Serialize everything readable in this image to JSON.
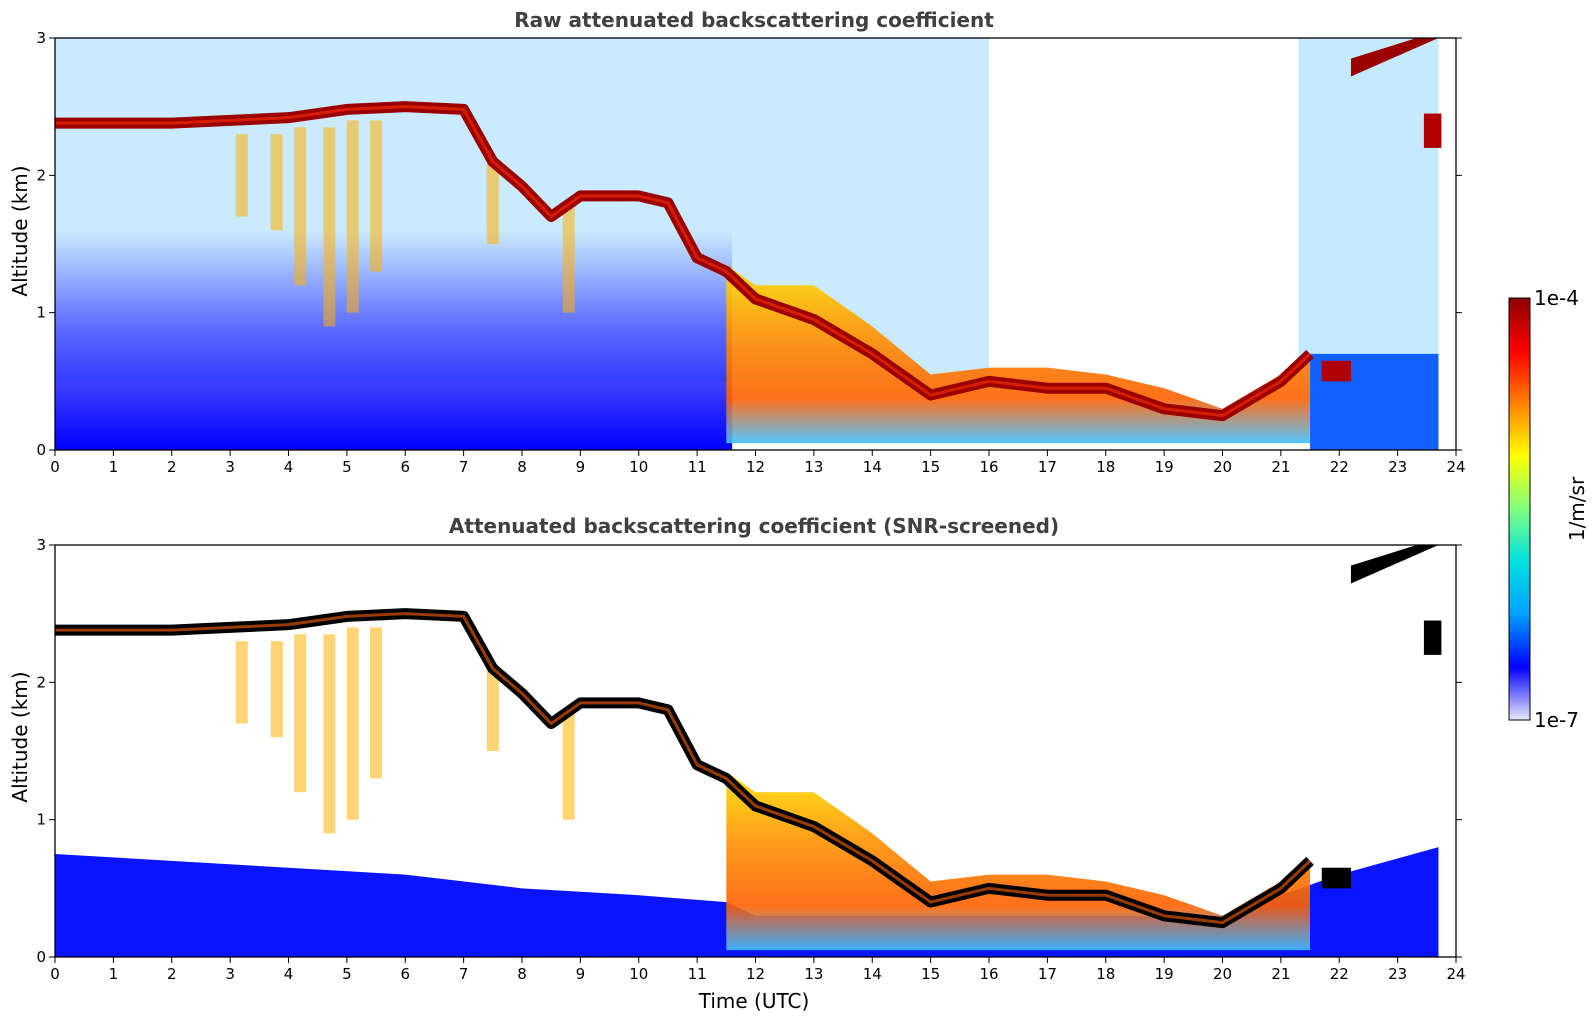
{
  "chart_data": [
    {
      "type": "heatmap",
      "title": "Raw attenuated backscattering coefficient",
      "xlabel": "",
      "ylabel": "Altitude (km)",
      "xlim": [
        0,
        24
      ],
      "ylim": [
        0,
        3
      ],
      "xticks": [
        "0",
        "1",
        "2",
        "3",
        "4",
        "5",
        "6",
        "7",
        "8",
        "9",
        "10",
        "11",
        "12",
        "13",
        "14",
        "15",
        "16",
        "17",
        "18",
        "19",
        "20",
        "21",
        "22",
        "23",
        "24"
      ],
      "yticks": [
        "0",
        "1",
        "2",
        "3"
      ],
      "cloud_layer": {
        "time": [
          0,
          1,
          2,
          3,
          4,
          5,
          6,
          7,
          7.5,
          8,
          8.5,
          9,
          10,
          10.5,
          11,
          11.5,
          12,
          13,
          14,
          15,
          16,
          17,
          18,
          19,
          20,
          21,
          21.5
        ],
        "altitude": [
          2.38,
          2.38,
          2.38,
          2.4,
          2.42,
          2.48,
          2.5,
          2.48,
          2.1,
          1.92,
          1.7,
          1.85,
          1.85,
          1.8,
          1.4,
          1.3,
          1.1,
          0.95,
          0.7,
          0.4,
          0.5,
          0.45,
          0.45,
          0.3,
          0.25,
          0.5,
          0.7
        ]
      },
      "upper_cloud": {
        "time": [
          22.2,
          23.7
        ],
        "altitude": [
          2.85,
          3.0
        ]
      }
    },
    {
      "type": "heatmap",
      "title": "Attenuated backscattering coefficient (SNR-screened)",
      "xlabel": "Time (UTC)",
      "ylabel": "Altitude (km)",
      "xlim": [
        0,
        24
      ],
      "ylim": [
        0,
        3
      ],
      "xticks": [
        "0",
        "1",
        "2",
        "3",
        "4",
        "5",
        "6",
        "7",
        "8",
        "9",
        "10",
        "11",
        "12",
        "13",
        "14",
        "15",
        "16",
        "17",
        "18",
        "19",
        "20",
        "21",
        "22",
        "23",
        "24"
      ],
      "yticks": [
        "0",
        "1",
        "2",
        "3"
      ],
      "boundary_layer_top": {
        "time": [
          0,
          2,
          4,
          6,
          8,
          10,
          11.5,
          12,
          16,
          20,
          22,
          23.7
        ],
        "altitude": [
          0.75,
          0.7,
          0.65,
          0.6,
          0.5,
          0.45,
          0.4,
          0.3,
          0.3,
          0.3,
          0.6,
          0.8
        ]
      }
    }
  ],
  "colorbar": {
    "label": "1/m/sr",
    "max_label": "1e-4",
    "min_label": "1e-7",
    "range": [
      1e-07,
      0.0001
    ],
    "colors": [
      "#e8e8f8",
      "#0000ff",
      "#00a0ff",
      "#00e0e0",
      "#80ff80",
      "#ffff00",
      "#ff8000",
      "#ff0000",
      "#8b0000"
    ]
  }
}
